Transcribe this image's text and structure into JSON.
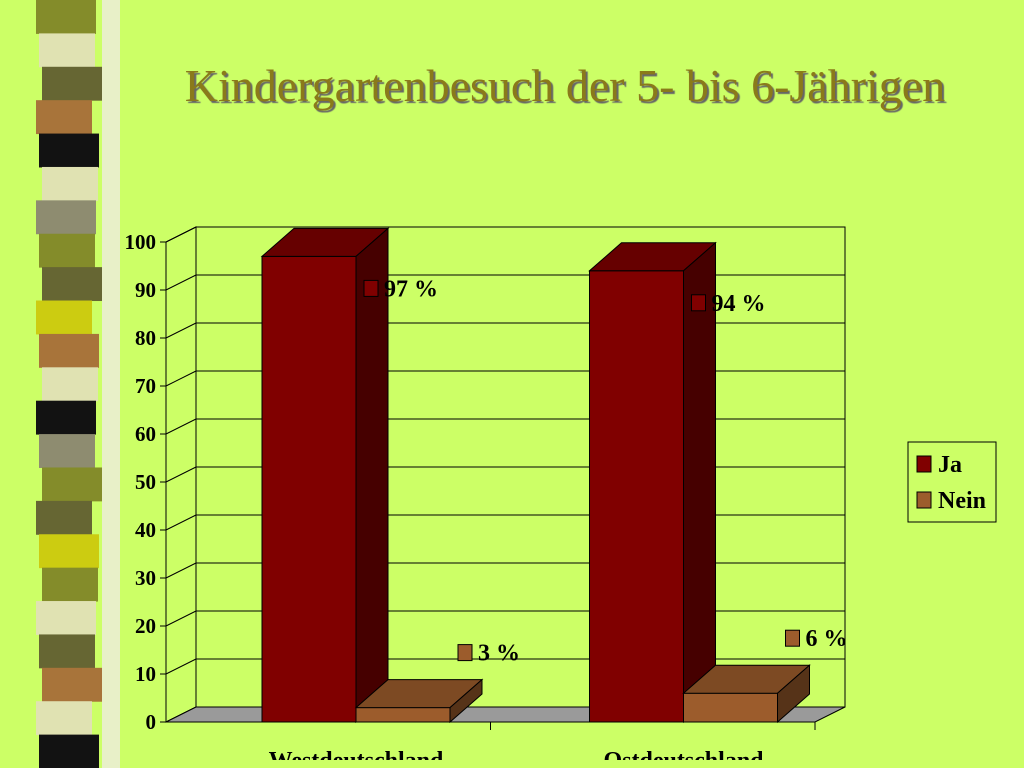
{
  "slide": {
    "title": "Kindergartenbesuch der 5- bis 6-Jährigen"
  },
  "decor": {
    "stripe_colors": [
      "#848c2a",
      "#e0e2b2",
      "#666633",
      "#a8743a",
      "#121212",
      "#e0e2b2",
      "#8e8c70",
      "#848c2a",
      "#666633",
      "#cccc11",
      "#a8743a",
      "#e0e2b2",
      "#121212",
      "#8e8c70",
      "#848c2a",
      "#666633",
      "#cccc11",
      "#848c2a",
      "#e0e2b2",
      "#666633",
      "#a8743a",
      "#e0e2b2",
      "#121212"
    ]
  },
  "chart_data": {
    "type": "bar",
    "categories": [
      "Westdeutschland",
      "Ostdeutschland"
    ],
    "series": [
      {
        "name": "Ja",
        "values": [
          97,
          94
        ],
        "color": "#800000",
        "labels": [
          "97 %",
          "94 %"
        ]
      },
      {
        "name": "Nein",
        "values": [
          3,
          6
        ],
        "color": "#9c5c2c",
        "labels": [
          "3 %",
          "6 %"
        ]
      }
    ],
    "ylim": [
      0,
      100
    ],
    "yticks": [
      0,
      10,
      20,
      30,
      40,
      50,
      60,
      70,
      80,
      90,
      100
    ],
    "grid": true,
    "legend": "right",
    "three_d": true
  }
}
